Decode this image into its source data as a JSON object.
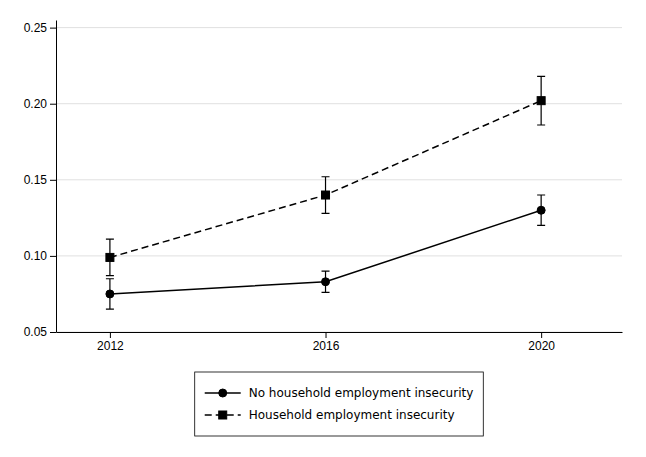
{
  "chart_data": {
    "type": "line",
    "x": [
      2012,
      2016,
      2020
    ],
    "xlim": [
      2011.0,
      2021.5
    ],
    "xticks": [
      2012,
      2016,
      2020
    ],
    "ylim": [
      0.05,
      0.255
    ],
    "yticks": [
      0.05,
      {
        "value": 0.1,
        "label": "0.10"
      },
      0.15,
      {
        "value": 0.2,
        "label": "0.20"
      },
      0.25
    ],
    "grid": true,
    "legend": "bottom",
    "series": [
      {
        "name": "No household employment insecurity",
        "color": "#000000",
        "values": [
          0.075,
          0.083,
          0.13
        ],
        "errors": [
          0.01,
          0.007,
          0.01
        ],
        "marker": "circle",
        "line_style": "solid"
      },
      {
        "name": "Household employment insecurity",
        "color": "#000000",
        "values": [
          0.099,
          0.14,
          0.202
        ],
        "errors": [
          0.012,
          0.012,
          0.016
        ],
        "marker": "square",
        "line_style": "dashed"
      }
    ]
  }
}
